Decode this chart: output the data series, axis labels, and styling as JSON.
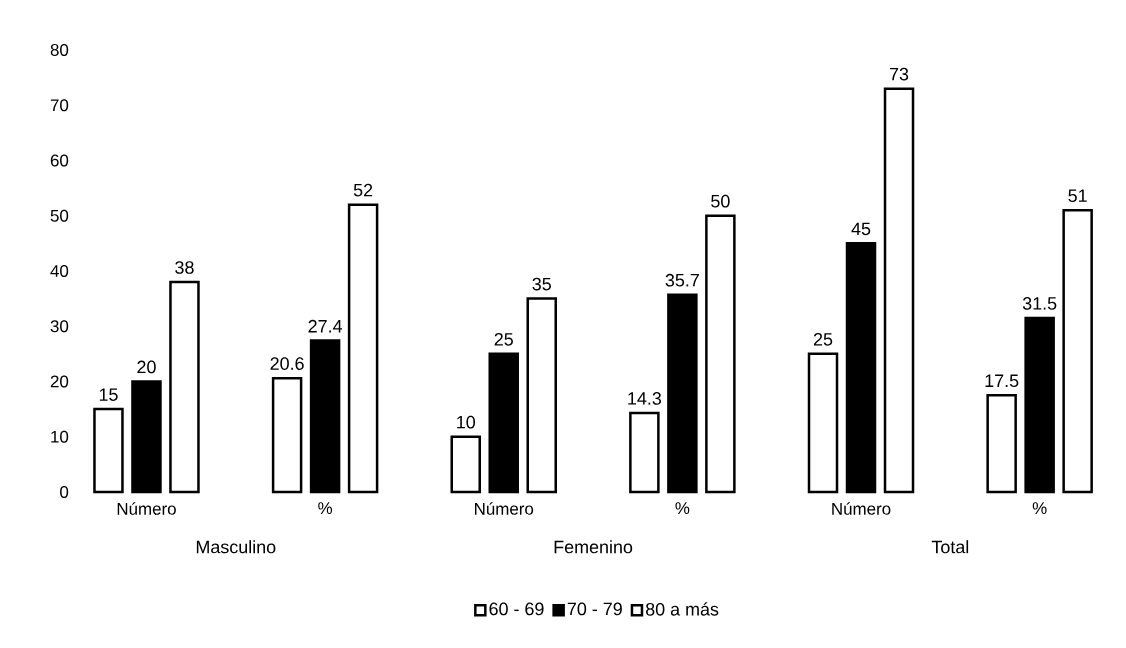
{
  "chart_data": {
    "type": "bar",
    "categories": [
      "Número",
      "%",
      "Número",
      "%",
      "Número",
      "%"
    ],
    "annotations": [
      "Masculino",
      "Femenino",
      "Total"
    ],
    "series": [
      {
        "name": "60 - 69",
        "color": "#ffffff",
        "values": [
          15,
          20.6,
          10,
          14.3,
          25,
          17.5
        ]
      },
      {
        "name": "70 - 79",
        "color": "#000000",
        "values": [
          20,
          27.4,
          25,
          35.7,
          45,
          31.5
        ]
      },
      {
        "name": "80 a más",
        "color": "#ffffff",
        "values": [
          38,
          52,
          35,
          50,
          73,
          51
        ]
      }
    ],
    "ylim": [
      0,
      80
    ],
    "yticks": [
      0,
      10,
      20,
      30,
      40,
      50,
      60,
      70,
      80
    ],
    "data_labels": true,
    "grid": false,
    "legend": "bottom"
  }
}
